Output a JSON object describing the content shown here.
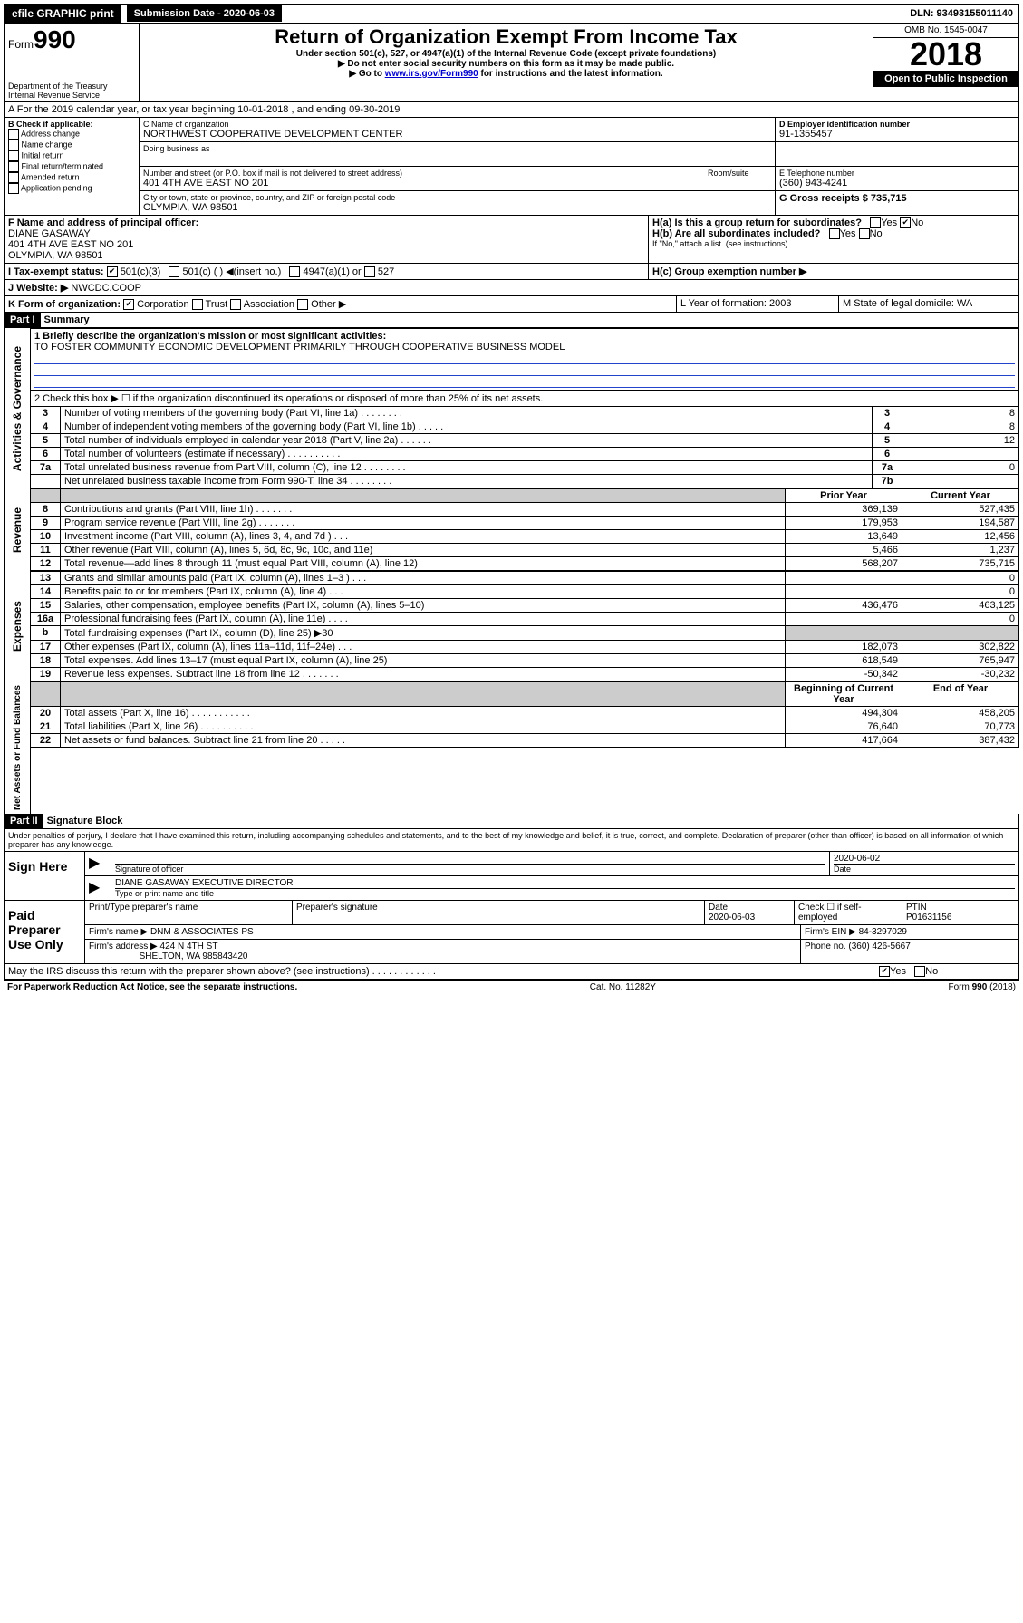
{
  "topbar": {
    "efile": "efile GRAPHIC print",
    "subdate_label": "Submission Date - 2020-06-03",
    "dln": "DLN: 93493155011140"
  },
  "header": {
    "form_word": "Form",
    "form_no": "990",
    "dept": "Department of the Treasury Internal Revenue Service",
    "title": "Return of Organization Exempt From Income Tax",
    "sub1": "Under section 501(c), 527, or 4947(a)(1) of the Internal Revenue Code (except private foundations)",
    "sub2": "▶ Do not enter social security numbers on this form as it may be made public.",
    "sub3": "▶ Go to www.irs.gov/Form990 for instructions and the latest information.",
    "omb": "OMB No. 1545-0047",
    "year": "2018",
    "open": "Open to Public Inspection"
  },
  "period": {
    "a": "A For the 2019 calendar year, or tax year beginning 10-01-2018    , and ending 09-30-2019"
  },
  "boxB": {
    "title": "B Check if applicable:",
    "items": [
      "Address change",
      "Name change",
      "Initial return",
      "Final return/terminated",
      "Amended return",
      "Application pending"
    ]
  },
  "boxC": {
    "label": "C Name of organization",
    "name": "NORTHWEST COOPERATIVE DEVELOPMENT CENTER",
    "dba_label": "Doing business as",
    "addr_label": "Number and street (or P.O. box if mail is not delivered to street address)",
    "room": "Room/suite",
    "addr": "401 4TH AVE EAST NO 201",
    "city_label": "City or town, state or province, country, and ZIP or foreign postal code",
    "city": "OLYMPIA, WA  98501"
  },
  "boxD": {
    "label": "D Employer identification number",
    "val": "91-1355457"
  },
  "boxE": {
    "label": "E Telephone number",
    "val": "(360) 943-4241"
  },
  "boxG": {
    "label": "G Gross receipts $ 735,715"
  },
  "boxF": {
    "label": "F  Name and address of principal officer:",
    "name": "DIANE GASAWAY",
    "addr1": "401 4TH AVE EAST NO 201",
    "addr2": "OLYMPIA, WA  98501"
  },
  "boxH": {
    "a": "H(a)  Is this a group return for subordinates?",
    "b": "H(b)  Are all subordinates included?",
    "b2": "If \"No,\" attach a list. (see instructions)",
    "c": "H(c)  Group exemption number ▶",
    "yes": "Yes",
    "no": "No"
  },
  "boxI": {
    "label": "I  Tax-exempt status:",
    "o1": "501(c)(3)",
    "o2": "501(c) (  ) ◀(insert no.)",
    "o3": "4947(a)(1) or",
    "o4": "527"
  },
  "boxJ": {
    "label": "J  Website: ▶",
    "val": "NWCDC.COOP"
  },
  "boxK": {
    "label": "K Form of organization:",
    "o1": "Corporation",
    "o2": "Trust",
    "o3": "Association",
    "o4": "Other ▶"
  },
  "boxL": {
    "label": "L Year of formation: 2003"
  },
  "boxM": {
    "label": "M State of legal domicile: WA"
  },
  "part1": {
    "tag": "Part I",
    "title": "Summary"
  },
  "summary": {
    "q1": "1  Briefly describe the organization's mission or most significant activities:",
    "mission": "TO FOSTER COMMUNITY ECONOMIC DEVELOPMENT PRIMARILY THROUGH COOPERATIVE BUSINESS MODEL",
    "q2": "2   Check this box ▶ ☐  if the organization discontinued its operations or disposed of more than 25% of its net assets.",
    "rows_top": [
      {
        "n": "3",
        "label": "Number of voting members of the governing body (Part VI, line 1a)   .    .    .    .    .    .    .    .",
        "box": "3",
        "val": "8"
      },
      {
        "n": "4",
        "label": "Number of independent voting members of the governing body (Part VI, line 1b)  .    .    .    .    .",
        "box": "4",
        "val": "8"
      },
      {
        "n": "5",
        "label": "Total number of individuals employed in calendar year 2018 (Part V, line 2a)  .    .    .    .    .    .",
        "box": "5",
        "val": "12"
      },
      {
        "n": "6",
        "label": "Total number of volunteers (estimate if necessary)  .    .    .    .    .    .    .    .    .    .",
        "box": "6",
        "val": ""
      },
      {
        "n": "7a",
        "label": "Total unrelated business revenue from Part VIII, column (C), line 12  .    .    .    .    .    .    .    .",
        "box": "7a",
        "val": "0"
      },
      {
        "n": "",
        "label": "Net unrelated business taxable income from Form 990-T, line 34  .    .    .    .    .    .    .    .",
        "box": "7b",
        "val": ""
      }
    ],
    "col_prior": "Prior Year",
    "col_current": "Current Year",
    "revenue": [
      {
        "n": "8",
        "label": "Contributions and grants (Part VIII, line 1h)  .    .    .    .    .    .    .",
        "p": "369,139",
        "c": "527,435"
      },
      {
        "n": "9",
        "label": "Program service revenue (Part VIII, line 2g)  .    .    .    .    .    .    .",
        "p": "179,953",
        "c": "194,587"
      },
      {
        "n": "10",
        "label": "Investment income (Part VIII, column (A), lines 3, 4, and 7d )  .    .    .",
        "p": "13,649",
        "c": "12,456"
      },
      {
        "n": "11",
        "label": "Other revenue (Part VIII, column (A), lines 5, 6d, 8c, 9c, 10c, and 11e)",
        "p": "5,466",
        "c": "1,237"
      },
      {
        "n": "12",
        "label": "Total revenue—add lines 8 through 11 (must equal Part VIII, column (A), line 12)",
        "p": "568,207",
        "c": "735,715"
      }
    ],
    "expenses": [
      {
        "n": "13",
        "label": "Grants and similar amounts paid (Part IX, column (A), lines 1–3 )  .    .    .",
        "p": "",
        "c": "0"
      },
      {
        "n": "14",
        "label": "Benefits paid to or for members (Part IX, column (A), line 4)  .    .    .",
        "p": "",
        "c": "0"
      },
      {
        "n": "15",
        "label": "Salaries, other compensation, employee benefits (Part IX, column (A), lines 5–10)",
        "p": "436,476",
        "c": "463,125"
      },
      {
        "n": "16a",
        "label": "Professional fundraising fees (Part IX, column (A), line 11e)  .    .    .    .",
        "p": "",
        "c": "0"
      },
      {
        "n": "b",
        "label": "Total fundraising expenses (Part IX, column (D), line 25) ▶30",
        "p": "gray",
        "c": "gray"
      },
      {
        "n": "17",
        "label": "Other expenses (Part IX, column (A), lines 11a–11d, 11f–24e)  .    .    .",
        "p": "182,073",
        "c": "302,822"
      },
      {
        "n": "18",
        "label": "Total expenses. Add lines 13–17 (must equal Part IX, column (A), line 25)",
        "p": "618,549",
        "c": "765,947"
      },
      {
        "n": "19",
        "label": "Revenue less expenses. Subtract line 18 from line 12  .    .    .    .    .    .    .",
        "p": "-50,342",
        "c": "-30,232"
      }
    ],
    "col_begin": "Beginning of Current Year",
    "col_end": "End of Year",
    "netassets": [
      {
        "n": "20",
        "label": "Total assets (Part X, line 16)  .    .    .    .    .    .    .    .    .    .    .",
        "p": "494,304",
        "c": "458,205"
      },
      {
        "n": "21",
        "label": "Total liabilities (Part X, line 26)  .    .    .    .    .    .    .    .    .    .",
        "p": "76,640",
        "c": "70,773"
      },
      {
        "n": "22",
        "label": "Net assets or fund balances. Subtract line 21 from line 20  .    .    .    .    .",
        "p": "417,664",
        "c": "387,432"
      }
    ],
    "side_gov": "Activities & Governance",
    "side_rev": "Revenue",
    "side_exp": "Expenses",
    "side_net": "Net Assets or Fund Balances"
  },
  "part2": {
    "tag": "Part II",
    "title": "Signature Block"
  },
  "sig": {
    "perjury": "Under penalties of perjury, I declare that I have examined this return, including accompanying schedules and statements, and to the best of my knowledge and belief, it is true, correct, and complete. Declaration of preparer (other than officer) is based on all information of which preparer has any knowledge.",
    "sign_here": "Sign Here",
    "sig_officer": "Signature of officer",
    "date": "Date",
    "date_val": "2020-06-02",
    "name_title": "DIANE GASAWAY  EXECUTIVE DIRECTOR",
    "name_label": "Type or print name and title",
    "paid": "Paid Preparer Use Only",
    "prep_name_label": "Print/Type preparer's name",
    "prep_sig": "Preparer's signature",
    "prep_date": "Date",
    "prep_date_val": "2020-06-03",
    "check_self": "Check ☐ if self-employed",
    "ptin_label": "PTIN",
    "ptin": "P01631156",
    "firm_name_label": "Firm's name    ▶",
    "firm_name": "DNM & ASSOCIATES PS",
    "firm_ein": "Firm's EIN ▶ 84-3297029",
    "firm_addr_label": "Firm's address ▶",
    "firm_addr": "424 N 4TH ST",
    "firm_city": "SHELTON, WA  985843420",
    "firm_phone": "Phone no. (360) 426-5667",
    "discuss": "May the IRS discuss this return with the preparer shown above? (see instructions)   .    .    .    .    .    .    .    .    .    .    .    .",
    "yes": "Yes",
    "no": "No"
  },
  "footer": {
    "left": "For Paperwork Reduction Act Notice, see the separate instructions.",
    "mid": "Cat. No. 11282Y",
    "right": "Form 990 (2018)"
  }
}
